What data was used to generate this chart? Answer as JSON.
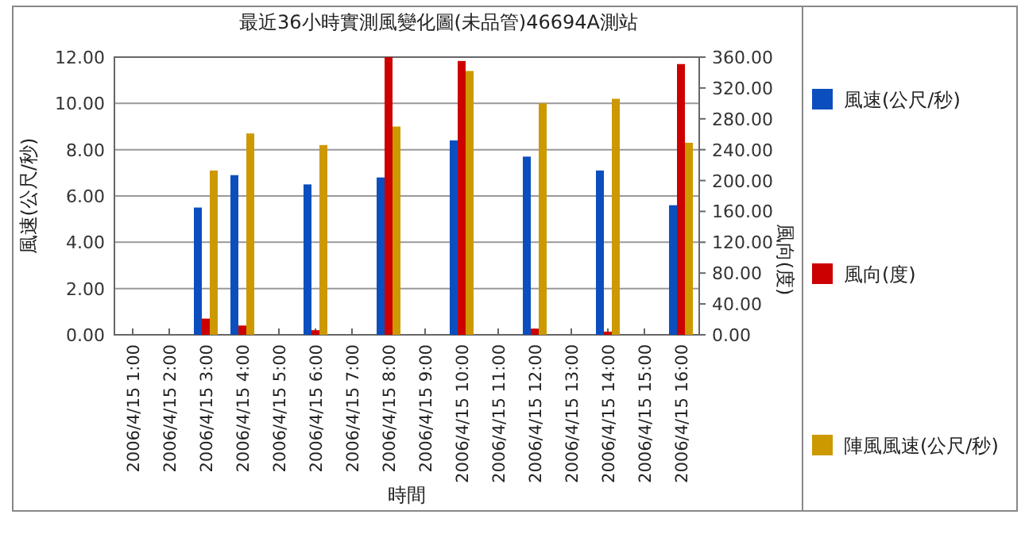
{
  "chart_data": {
    "type": "bar",
    "title": "最近36小時實測風變化圖(未品管)46694A測站",
    "xlabel": "時間",
    "ylabel": "風速(公尺/秒)",
    "y2label": "風向(度)",
    "categories": [
      "2006/4/15 1:00",
      "2006/4/15 2:00",
      "2006/4/15 3:00",
      "2006/4/15 4:00",
      "2006/4/15 5:00",
      "2006/4/15 6:00",
      "2006/4/15 7:00",
      "2006/4/15 8:00",
      "2006/4/15 9:00",
      "2006/4/15 10:00",
      "2006/4/15 11:00",
      "2006/4/15 12:00",
      "2006/4/15 13:00",
      "2006/4/15 14:00",
      "2006/4/15 15:00",
      "2006/4/15 16:00"
    ],
    "series": [
      {
        "name": "風速(公尺/秒)",
        "color": "#0b4fbf",
        "values": [
          null,
          null,
          5.5,
          6.9,
          null,
          6.5,
          null,
          6.8,
          null,
          8.4,
          null,
          7.7,
          null,
          7.1,
          null,
          5.6
        ]
      },
      {
        "name": "風向(度)",
        "color": "#cc0000",
        "axis": "y2",
        "values": [
          null,
          null,
          21,
          12,
          null,
          6,
          null,
          360,
          null,
          355,
          null,
          8,
          null,
          4,
          null,
          351
        ]
      },
      {
        "name": "陣風風速(公尺/秒)",
        "color": "#cc9900",
        "values": [
          null,
          null,
          7.1,
          8.7,
          null,
          8.2,
          null,
          9.0,
          null,
          11.4,
          null,
          10.0,
          null,
          10.2,
          null,
          8.3
        ]
      }
    ],
    "ylim": [
      0,
      12
    ],
    "yticks": [
      {
        "value": 0,
        "label": "0.00"
      },
      {
        "value": 2,
        "label": "2.00"
      },
      {
        "value": 4,
        "label": "4.00"
      },
      {
        "value": 6,
        "label": "6.00"
      },
      {
        "value": 8,
        "label": "8.00"
      },
      {
        "value": 10,
        "label": "10.00"
      },
      {
        "value": 12,
        "label": "12.00"
      }
    ],
    "y2lim": [
      0,
      360
    ],
    "y2ticks": [
      {
        "value": 0,
        "label": "0.00"
      },
      {
        "value": 40,
        "label": "40.00"
      },
      {
        "value": 80,
        "label": "80.00"
      },
      {
        "value": 120,
        "label": "120.00"
      },
      {
        "value": 160,
        "label": "160.00"
      },
      {
        "value": 200,
        "label": "200.00"
      },
      {
        "value": 240,
        "label": "240.00"
      },
      {
        "value": 280,
        "label": "280.00"
      },
      {
        "value": 320,
        "label": "320.00"
      },
      {
        "value": 360,
        "label": "360.00"
      }
    ],
    "grid": "y",
    "legend": "right"
  }
}
